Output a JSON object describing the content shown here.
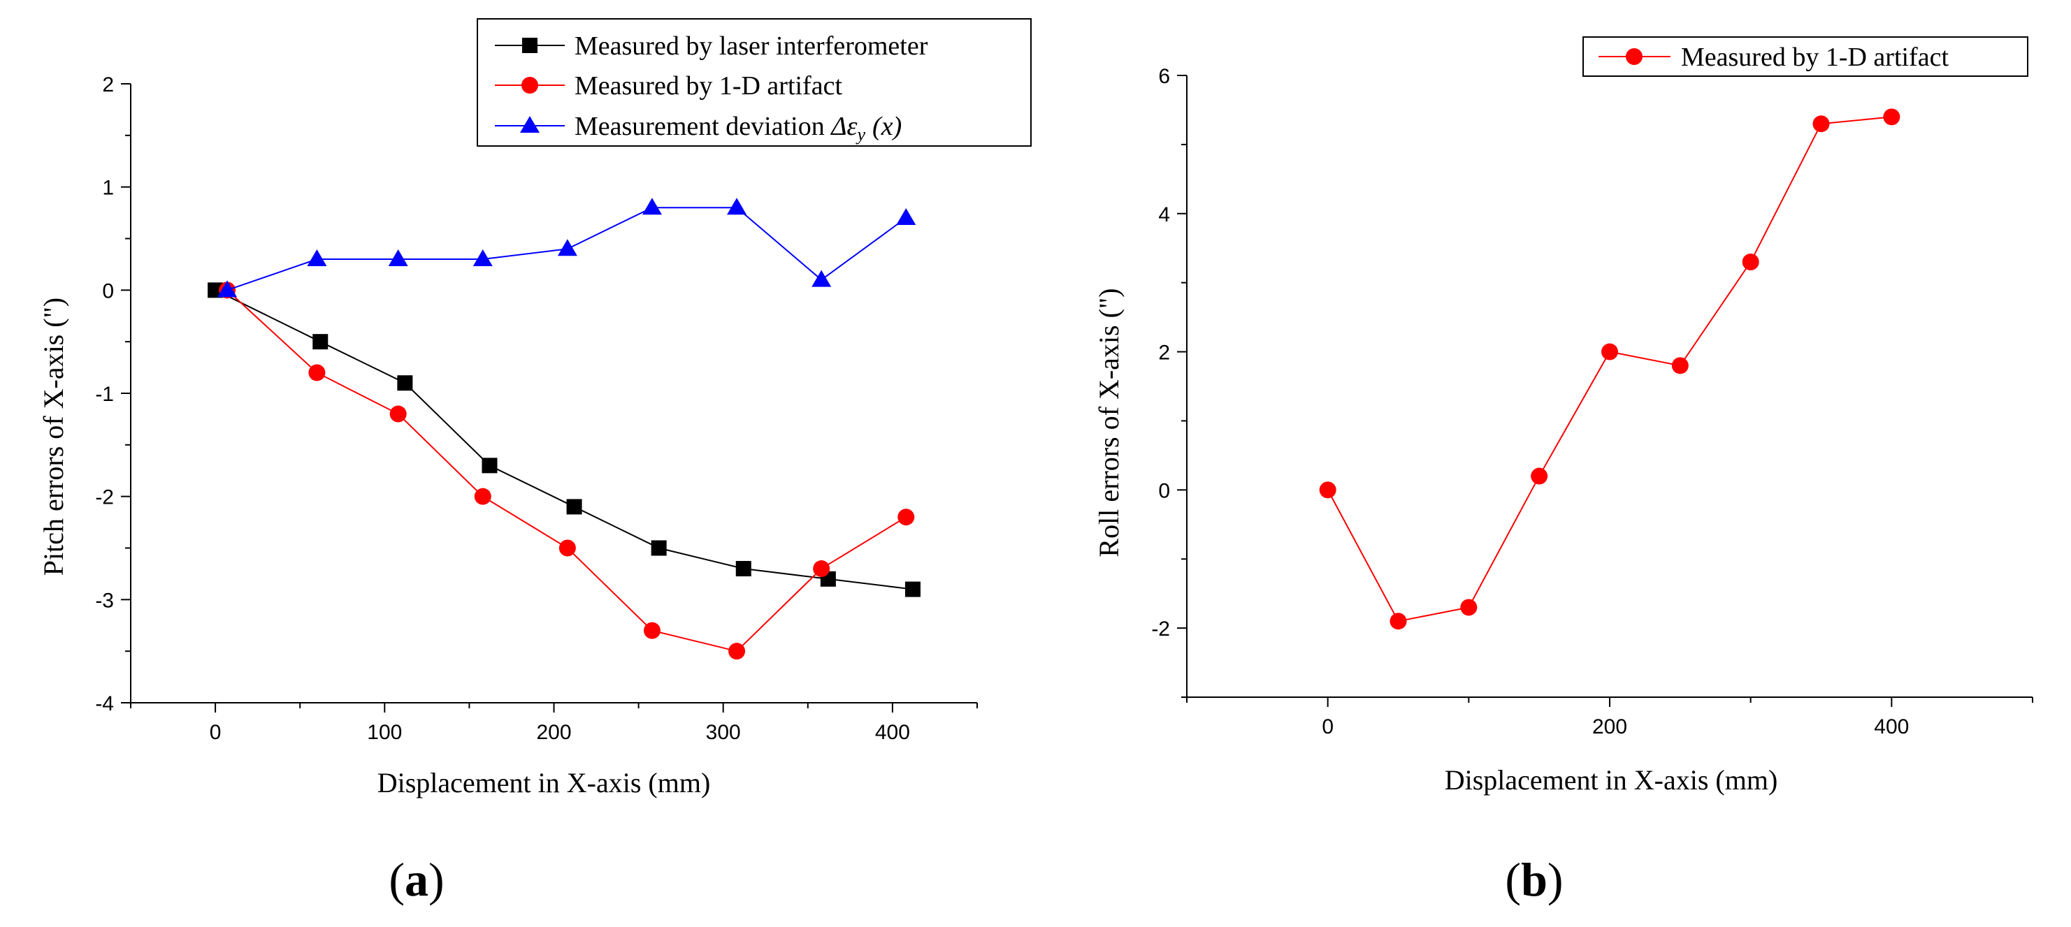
{
  "chart_data": [
    {
      "type": "line",
      "panel": "a",
      "xlabel": "Displacement in X-axis (mm)",
      "ylabel": "Pitch errors of X-axis (\")",
      "xlim": [
        -50,
        450
      ],
      "ylim": [
        -4,
        2
      ],
      "xticks": [
        0,
        100,
        200,
        300,
        400
      ],
      "yticks": [
        -4,
        -3,
        -2,
        -1,
        0,
        1,
        2
      ],
      "legend_position": "top-right",
      "series": [
        {
          "name": "Measured by laser interferometer",
          "color": "#000000",
          "marker": "square",
          "x": [
            0,
            62,
            112,
            162,
            212,
            262,
            312,
            362,
            412
          ],
          "y": [
            0,
            -0.5,
            -0.9,
            -1.7,
            -2.1,
            -2.5,
            -2.7,
            -2.8,
            -2.9
          ]
        },
        {
          "name": "Measured by 1-D artifact",
          "color": "#ff0000",
          "marker": "circle",
          "x": [
            7,
            60,
            108,
            158,
            208,
            258,
            308,
            358,
            408
          ],
          "y": [
            0,
            -0.8,
            -1.2,
            -2.0,
            -2.5,
            -3.3,
            -3.5,
            -2.7,
            -2.2
          ]
        },
        {
          "name_prefix": "Measurement deviation ",
          "name_symbol": "Δε",
          "name_sub": "y",
          "name_suffix": "(x)",
          "color": "#0000ff",
          "marker": "triangle",
          "x": [
            7,
            60,
            108,
            158,
            208,
            258,
            308,
            358,
            408
          ],
          "y": [
            0,
            0.3,
            0.3,
            0.3,
            0.4,
            0.8,
            0.8,
            0.1,
            0.7
          ]
        }
      ]
    },
    {
      "type": "line",
      "panel": "b",
      "xlabel": "Displacement in X-axis (mm)",
      "ylabel": "Roll errors of X-axis (\")",
      "xlim": [
        -100,
        500
      ],
      "ylim": [
        -3,
        6
      ],
      "xticks": [
        0,
        200,
        400
      ],
      "yticks": [
        -2,
        0,
        2,
        4,
        6
      ],
      "legend_position": "top-right",
      "series": [
        {
          "name": "Measured by 1-D artifact",
          "color": "#ff0000",
          "marker": "circle",
          "x": [
            0,
            50,
            100,
            150,
            200,
            250,
            300,
            350,
            400
          ],
          "y": [
            0,
            -1.9,
            -1.7,
            0.2,
            2.0,
            1.8,
            3.3,
            5.3,
            5.4
          ]
        }
      ]
    }
  ],
  "panel_labels": {
    "a": "a",
    "b": "b",
    "open": "(",
    "close": ")"
  }
}
